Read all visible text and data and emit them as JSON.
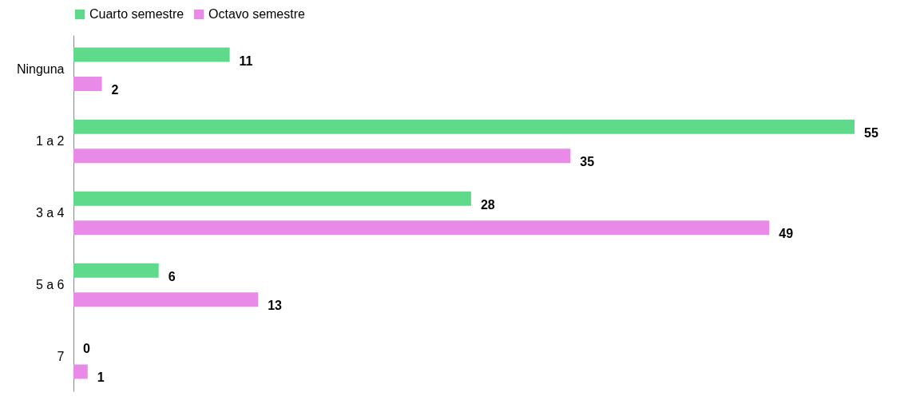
{
  "chart_data": {
    "type": "bar",
    "orientation": "horizontal",
    "categories": [
      "Ninguna",
      "1 a 2",
      "3 a 4",
      "5 a 6",
      "7"
    ],
    "series": [
      {
        "name": "Cuarto semestre",
        "color": "#5fd98a",
        "values": [
          11,
          55,
          28,
          6,
          0
        ]
      },
      {
        "name": "Octavo semestre",
        "color": "#e98ae8",
        "values": [
          2,
          35,
          49,
          13,
          1
        ]
      }
    ],
    "data_labels": true,
    "legend": "top",
    "tick_labels": "y",
    "grid": false
  }
}
